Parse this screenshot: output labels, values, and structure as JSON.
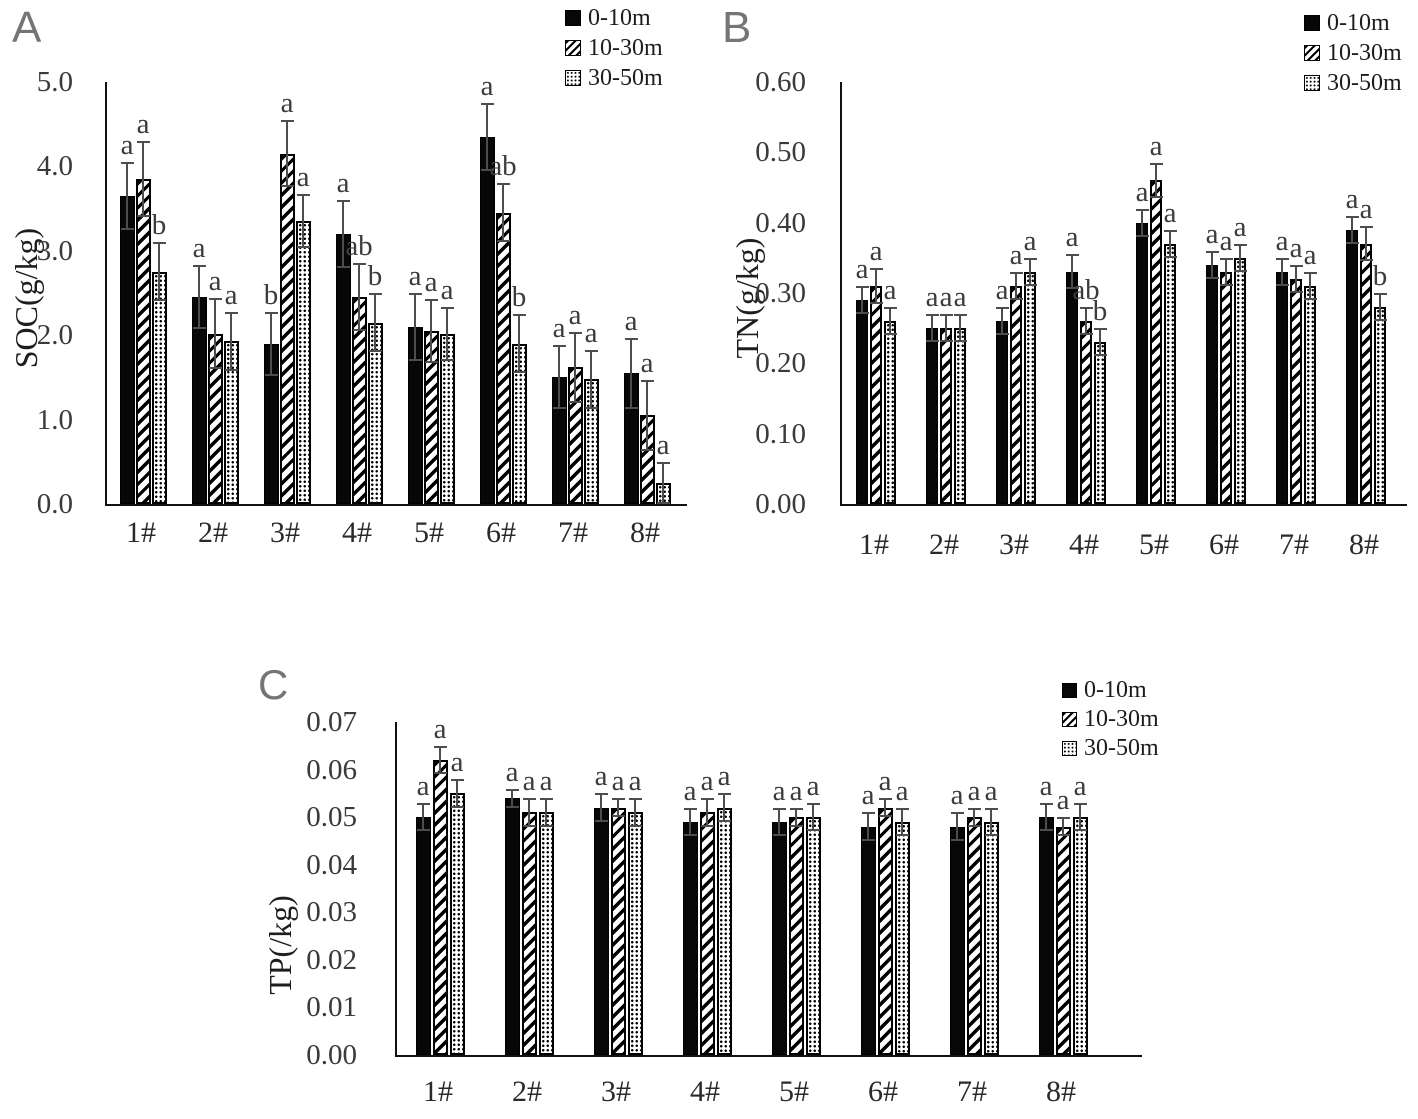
{
  "chart_data": [
    {
      "type": "bar",
      "panel_label": "A",
      "ylabel": "SOC(g/kg)",
      "ylim": [
        0.0,
        5.0
      ],
      "ytick_labels": [
        "0.0",
        "1.0",
        "2.0",
        "3.0",
        "4.0",
        "5.0"
      ],
      "categories": [
        "1#",
        "2#",
        "3#",
        "4#",
        "5#",
        "6#",
        "7#",
        "8#"
      ],
      "legend": [
        "0-10m",
        "10-30m",
        "30-50m"
      ],
      "legend_position": "top-right",
      "grid": false,
      "error_bars": true,
      "series": [
        {
          "name": "0-10m",
          "pattern": "solid-black",
          "values": [
            3.65,
            2.45,
            1.9,
            3.2,
            2.1,
            4.35,
            1.5,
            1.55
          ],
          "errors": [
            0.4,
            0.38,
            0.38,
            0.4,
            0.4,
            0.4,
            0.38,
            0.42
          ],
          "sig_letters": [
            "a",
            "a",
            "b",
            "a",
            "a",
            "a",
            "a",
            "a"
          ]
        },
        {
          "name": "10-30m",
          "pattern": "diagonal-hatch",
          "values": [
            3.85,
            2.02,
            4.15,
            2.45,
            2.05,
            3.45,
            1.62,
            1.05
          ],
          "errors": [
            0.45,
            0.42,
            0.4,
            0.4,
            0.38,
            0.35,
            0.42,
            0.42
          ],
          "sig_letters": [
            "a",
            "a",
            "a",
            "ab",
            "a",
            "ab",
            "a",
            "a"
          ]
        },
        {
          "name": "30-50m",
          "pattern": "dotted",
          "values": [
            2.75,
            1.93,
            3.35,
            2.15,
            2.02,
            1.9,
            1.48,
            0.25
          ],
          "errors": [
            0.35,
            0.35,
            0.32,
            0.35,
            0.32,
            0.35,
            0.35,
            0.25
          ],
          "sig_letters": [
            "b",
            "a",
            "a",
            "b",
            "a",
            "b",
            "a",
            "a"
          ]
        }
      ]
    },
    {
      "type": "bar",
      "panel_label": "B",
      "ylabel": "TN(g/kg)",
      "ylim": [
        0.0,
        0.6
      ],
      "ytick_labels": [
        "0.00",
        "0.10",
        "0.20",
        "0.30",
        "0.40",
        "0.50",
        "0.60"
      ],
      "categories": [
        "1#",
        "2#",
        "3#",
        "4#",
        "5#",
        "6#",
        "7#",
        "8#"
      ],
      "legend": [
        "0-10m",
        "10-30m",
        "30-50m"
      ],
      "legend_position": "top-right",
      "grid": false,
      "error_bars": true,
      "series": [
        {
          "name": "0-10m",
          "pattern": "solid-black",
          "values": [
            0.29,
            0.25,
            0.26,
            0.33,
            0.4,
            0.34,
            0.33,
            0.39
          ],
          "errors": [
            0.02,
            0.02,
            0.02,
            0.025,
            0.02,
            0.02,
            0.02,
            0.02
          ],
          "sig_letters": [
            "a",
            "a",
            "a",
            "a",
            "a",
            "a",
            "a",
            "a"
          ]
        },
        {
          "name": "10-30m",
          "pattern": "diagonal-hatch",
          "values": [
            0.31,
            0.25,
            0.31,
            0.26,
            0.46,
            0.33,
            0.32,
            0.37
          ],
          "errors": [
            0.025,
            0.02,
            0.02,
            0.02,
            0.025,
            0.02,
            0.02,
            0.025
          ],
          "sig_letters": [
            "a",
            "a",
            "a",
            "ab",
            "a",
            "a",
            "a",
            "a"
          ]
        },
        {
          "name": "30-50m",
          "pattern": "dotted",
          "values": [
            0.26,
            0.25,
            0.33,
            0.23,
            0.37,
            0.35,
            0.31,
            0.28
          ],
          "errors": [
            0.02,
            0.02,
            0.02,
            0.02,
            0.02,
            0.02,
            0.02,
            0.02
          ],
          "sig_letters": [
            "a",
            "a",
            "a",
            "b",
            "a",
            "a",
            "a",
            "b"
          ]
        }
      ]
    },
    {
      "type": "bar",
      "panel_label": "C",
      "ylabel": "TP(/kg)",
      "ylim": [
        0.0,
        0.07
      ],
      "ytick_labels": [
        "0.00",
        "0.01",
        "0.02",
        "0.03",
        "0.04",
        "0.05",
        "0.06",
        "0.07"
      ],
      "categories": [
        "1#",
        "2#",
        "3#",
        "4#",
        "5#",
        "6#",
        "7#",
        "8#"
      ],
      "legend": [
        "0-10m",
        "10-30m",
        "30-50m"
      ],
      "legend_position": "top-right",
      "grid": false,
      "error_bars": true,
      "series": [
        {
          "name": "0-10m",
          "pattern": "solid-black",
          "values": [
            0.05,
            0.054,
            0.052,
            0.049,
            0.049,
            0.048,
            0.048,
            0.05
          ],
          "errors": [
            0.003,
            0.002,
            0.003,
            0.003,
            0.003,
            0.003,
            0.003,
            0.003
          ],
          "sig_letters": [
            "a",
            "a",
            "a",
            "a",
            "a",
            "a",
            "a",
            "a"
          ]
        },
        {
          "name": "10-30m",
          "pattern": "diagonal-hatch",
          "values": [
            0.062,
            0.051,
            0.052,
            0.051,
            0.05,
            0.052,
            0.05,
            0.048
          ],
          "errors": [
            0.003,
            0.003,
            0.002,
            0.003,
            0.002,
            0.002,
            0.002,
            0.002
          ],
          "sig_letters": [
            "a",
            "a",
            "a",
            "a",
            "a",
            "a",
            "a",
            "a"
          ]
        },
        {
          "name": "30-50m",
          "pattern": "dotted",
          "values": [
            0.055,
            0.051,
            0.051,
            0.052,
            0.05,
            0.049,
            0.049,
            0.05
          ],
          "errors": [
            0.003,
            0.003,
            0.003,
            0.003,
            0.003,
            0.003,
            0.003,
            0.003
          ],
          "sig_letters": [
            "a",
            "a",
            "a",
            "a",
            "a",
            "a",
            "a",
            "a"
          ]
        }
      ]
    }
  ]
}
